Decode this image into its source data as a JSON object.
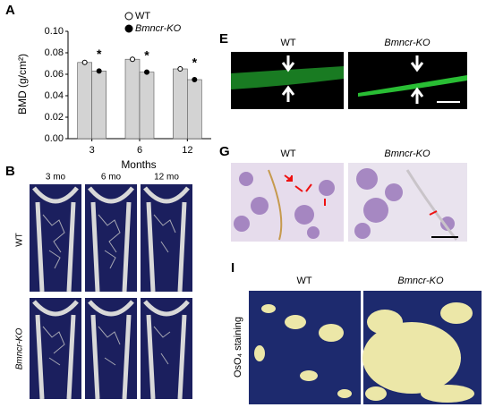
{
  "chart_data": {
    "type": "bar",
    "panel_label": "A",
    "categories": [
      "3",
      "6",
      "12"
    ],
    "series": [
      {
        "name": "WT",
        "color": "#d3d3d3",
        "values": [
          0.071,
          0.074,
          0.065
        ]
      },
      {
        "name": "Bmncr-KO",
        "color": "#d3d3d3",
        "values": [
          0.063,
          0.062,
          0.055
        ]
      }
    ],
    "ylabel": "BMD (g/cm²)",
    "xlabel": "Months",
    "ylim": [
      0,
      0.1
    ],
    "yticks": [
      {
        "value": 0,
        "label": "0.00"
      },
      {
        "value": 0.02,
        "label": "0.02"
      },
      {
        "value": 0.04,
        "label": "0.04"
      },
      {
        "value": 0.06,
        "label": "0.06"
      },
      {
        "value": 0.08,
        "label": "0.08"
      },
      {
        "value": 0.1,
        "label": "0.10"
      }
    ],
    "annotations": [
      "*",
      "*",
      "*"
    ]
  },
  "panel_b": {
    "label": "B",
    "columns": [
      "3 mo",
      "6 mo",
      "12 mo"
    ],
    "rows": [
      "WT",
      "Bmncr-KO"
    ]
  },
  "panel_e": {
    "label": "E",
    "columns": [
      "WT",
      "Bmncr-KO"
    ]
  },
  "panel_g": {
    "label": "G",
    "columns": [
      "WT",
      "Bmncr-KO"
    ]
  },
  "panel_i": {
    "label": "I",
    "columns": [
      "WT",
      "Bmncr-KO"
    ],
    "ylabel": "OsO₄ staining"
  }
}
